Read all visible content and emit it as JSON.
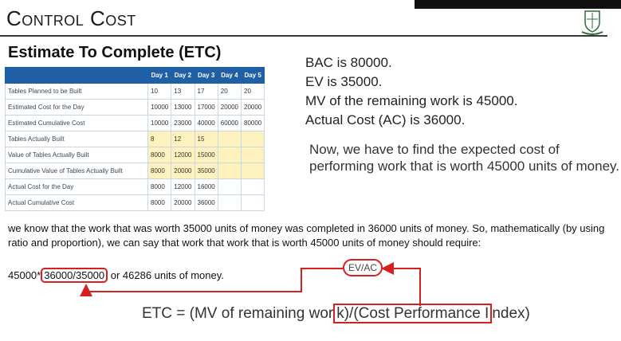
{
  "header": {
    "title": "Control Cost"
  },
  "section": {
    "heading": "Estimate To Complete (ETC)"
  },
  "table": {
    "columns": [
      "",
      "Day 1",
      "Day 2",
      "Day 3",
      "Day 4",
      "Day 5"
    ],
    "rows": [
      {
        "label": "Tables Planned to be Built",
        "values": [
          "10",
          "13",
          "17",
          "20",
          "20"
        ],
        "highlight": false
      },
      {
        "label": "Estimated Cost for the Day",
        "values": [
          "10000",
          "13000",
          "17000",
          "20000",
          "20000"
        ],
        "highlight": false
      },
      {
        "label": "Estimated Cumulative Cost",
        "values": [
          "10000",
          "23000",
          "40000",
          "60000",
          "80000"
        ],
        "highlight": false
      },
      {
        "label": "Tables Actually Built",
        "values": [
          "8",
          "12",
          "15",
          "",
          ""
        ],
        "highlight": true
      },
      {
        "label": "Value of Tables Actually Built",
        "values": [
          "8000",
          "12000",
          "15000",
          "",
          ""
        ],
        "highlight": true
      },
      {
        "label": "Cumulative Value of Tables Actually Built",
        "values": [
          "8000",
          "20000",
          "35000",
          "",
          ""
        ],
        "highlight": true
      },
      {
        "label": "Actual Cost for the Day",
        "values": [
          "8000",
          "12000",
          "16000",
          "",
          ""
        ],
        "highlight": false
      },
      {
        "label": "Actual Cumulative Cost",
        "values": [
          "8000",
          "20000",
          "36000",
          "",
          ""
        ],
        "highlight": false
      }
    ],
    "highlight_color": "#fdf2bd",
    "header_color": "#1f5fa5"
  },
  "stats": [
    "BAC is 80000.",
    "EV is 35000.",
    "MV of the remaining work is 45000.",
    "Actual Cost (AC) is 36000."
  ],
  "paragraph": "Now, we have to find the expected cost of performing work that is worth 45000 units of money.",
  "explanation": "we know that the work that was worth 35000 units of money was completed in 36000 units of money. So, mathematically (by using ratio and proportion), we can say that work that work that is worth 45000 units of money should require:",
  "formula": {
    "prefix": "45000*",
    "ratio": "36000/35000",
    "suffix": " or 46286 units of money."
  },
  "evac_label": "EV/AC",
  "etc_formula": {
    "before": "ETC = (MV of remaining wor",
    "boxed": "k)/(Cost Performance I",
    "after": "ndex)"
  },
  "colors": {
    "annotation_red": "#d62020"
  }
}
